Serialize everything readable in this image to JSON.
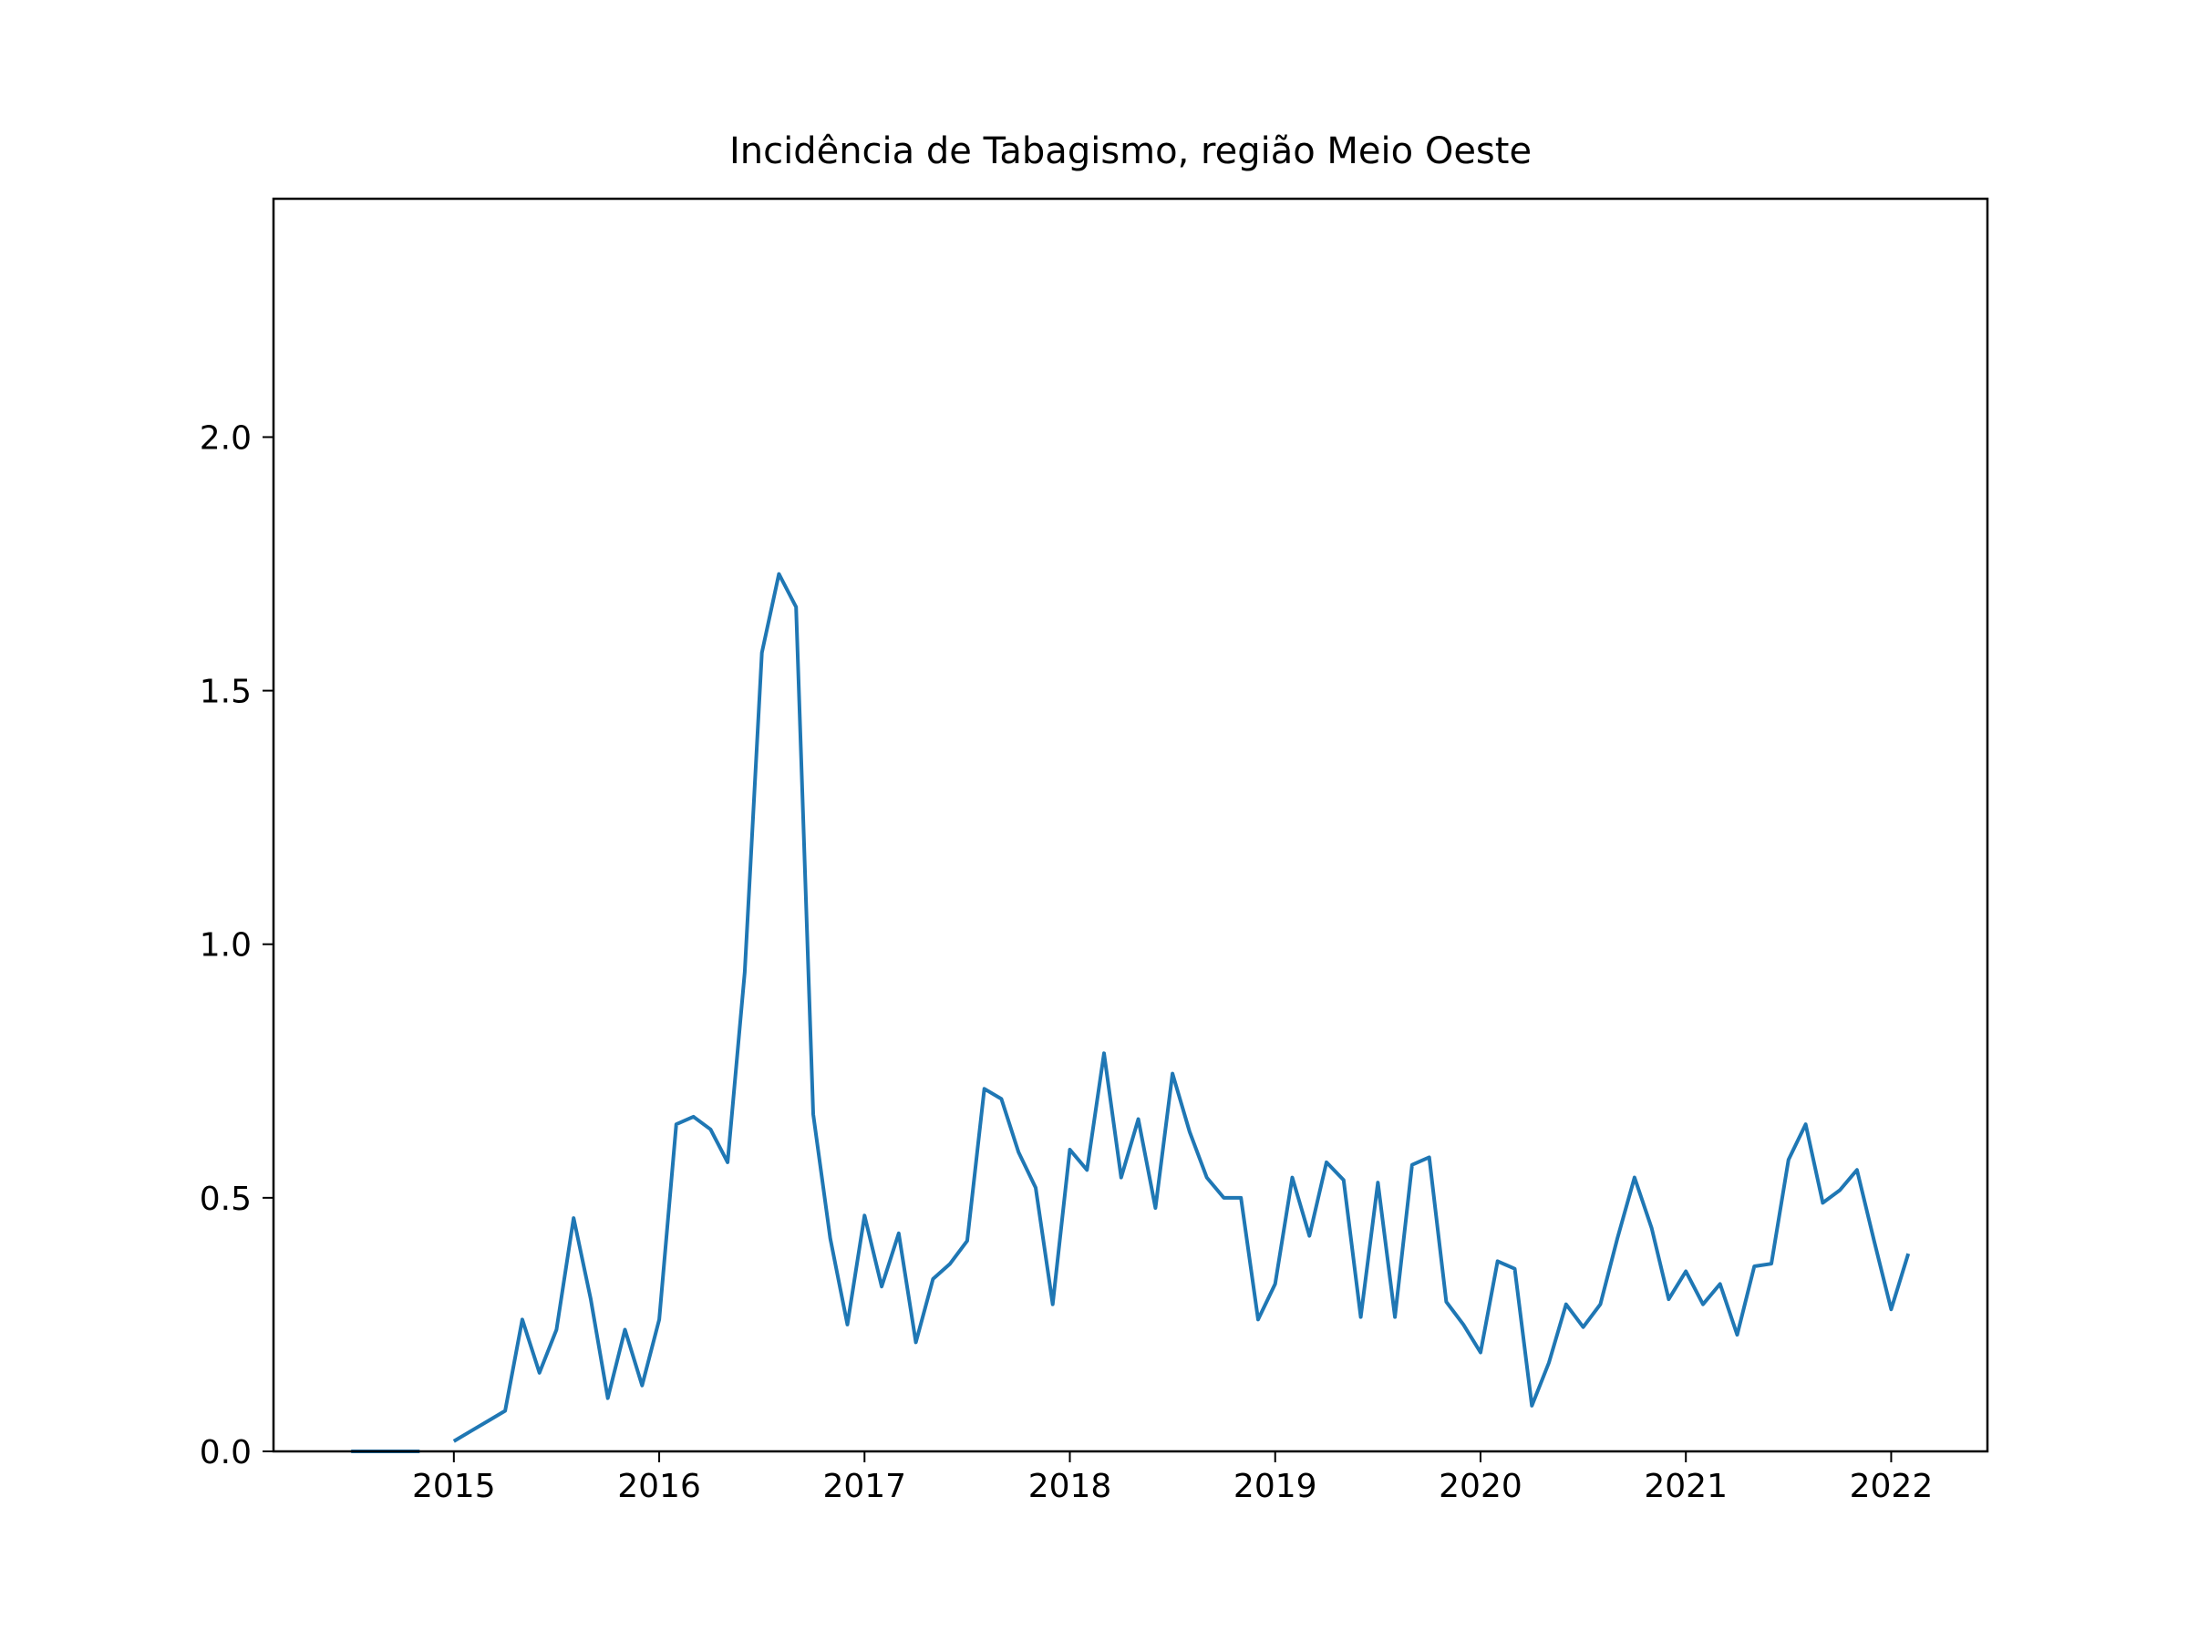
{
  "chart_data": {
    "type": "line",
    "title": "Incidência de Tabagismo, região Meio Oeste",
    "xlabel": "",
    "ylabel": "",
    "x_type": "date",
    "xlim": [
      "2014-02-15",
      "2022-06-20"
    ],
    "ylim": [
      0,
      2.47
    ],
    "x_ticks": [
      "2015",
      "2016",
      "2017",
      "2018",
      "2019",
      "2020",
      "2021",
      "2022"
    ],
    "y_ticks": [
      "0.0",
      "0.5",
      "1.0",
      "1.5",
      "2.0"
    ],
    "grid": false,
    "legend": "none",
    "line_color": "#1f77b4",
    "series": [
      {
        "x": [
          "2014-07",
          "2014-08",
          "2014-09",
          "2014-10",
          "2014-11",
          "2014-12",
          "2015-01",
          "2015-02",
          "2015-03",
          "2015-04",
          "2015-05",
          "2015-06",
          "2015-07",
          "2015-08",
          "2015-09",
          "2015-10",
          "2015-11",
          "2015-12",
          "2016-01",
          "2016-02",
          "2016-03",
          "2016-04",
          "2016-05",
          "2016-06",
          "2016-07",
          "2016-08",
          "2016-09",
          "2016-10",
          "2016-11",
          "2016-12",
          "2017-01",
          "2017-02",
          "2017-03",
          "2017-04",
          "2017-05",
          "2017-06",
          "2017-07",
          "2017-08",
          "2017-09",
          "2017-10",
          "2017-11",
          "2017-12",
          "2018-01",
          "2018-02",
          "2018-03",
          "2018-04",
          "2018-05",
          "2018-06",
          "2018-07",
          "2018-08",
          "2018-09",
          "2018-10",
          "2018-11",
          "2018-12",
          "2019-01",
          "2019-02",
          "2019-03",
          "2019-04",
          "2019-05",
          "2019-06",
          "2019-07",
          "2019-08",
          "2019-09",
          "2019-10",
          "2019-11",
          "2019-12",
          "2020-01",
          "2020-02",
          "2020-03",
          "2020-04",
          "2020-05",
          "2020-06",
          "2020-07",
          "2020-08",
          "2020-09",
          "2020-10",
          "2020-11",
          "2020-12",
          "2021-01",
          "2021-02",
          "2021-03",
          "2021-04",
          "2021-05",
          "2021-06",
          "2021-07",
          "2021-08",
          "2021-09",
          "2021-10",
          "2021-11",
          "2021-12",
          "2022-01",
          "2022-02"
        ],
        "values": [
          0,
          0,
          0,
          0,
          0,
          null,
          0.02,
          0.04,
          0.06,
          0.08,
          0.26,
          0.155,
          0.24,
          0.46,
          0.3,
          0.105,
          0.24,
          0.13,
          0.26,
          0.645,
          0.66,
          0.635,
          0.57,
          0.945,
          1.575,
          1.73,
          1.665,
          0.665,
          0.42,
          0.25,
          0.465,
          0.325,
          0.43,
          0.215,
          0.34,
          0.37,
          0.415,
          0.715,
          0.695,
          0.59,
          0.52,
          0.29,
          0.595,
          0.555,
          0.785,
          0.54,
          0.655,
          0.48,
          0.745,
          0.63,
          0.54,
          0.5,
          0.5,
          0.26,
          0.33,
          0.54,
          0.425,
          0.57,
          0.535,
          0.265,
          0.53,
          0.265,
          0.565,
          0.58,
          0.295,
          0.25,
          0.195,
          0.375,
          0.36,
          0.09,
          0.175,
          0.29,
          0.245,
          0.29,
          0.42,
          0.54,
          0.44,
          0.3,
          0.355,
          0.29,
          0.33,
          0.23,
          0.365,
          0.37,
          0.575,
          0.645,
          0.49,
          0.515,
          0.555,
          0.415,
          0.28,
          0.39
        ]
      }
    ]
  }
}
